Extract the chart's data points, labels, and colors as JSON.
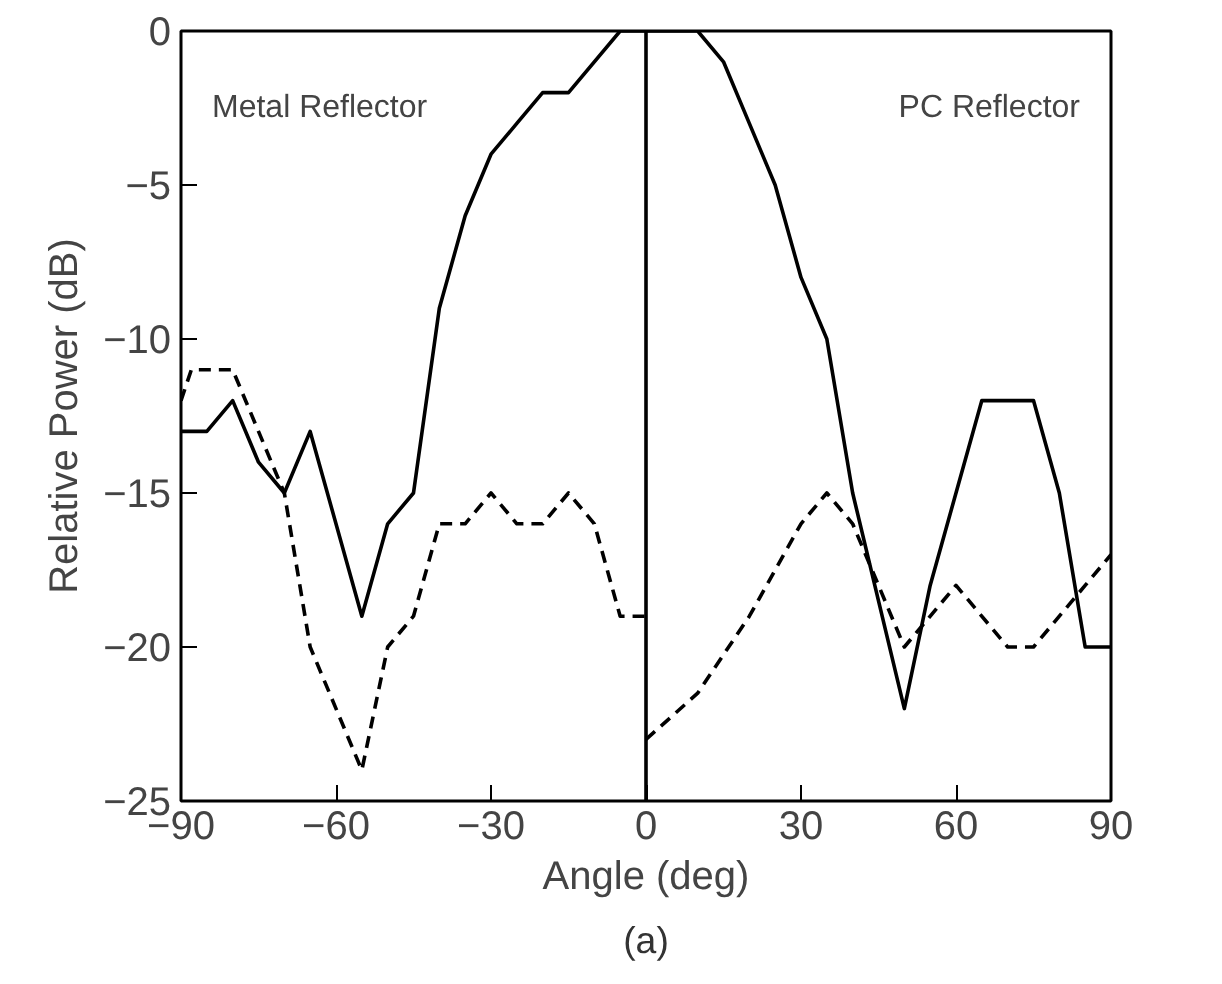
{
  "chart_data": {
    "type": "line",
    "xlabel": "Angle (deg)",
    "ylabel": "Relative Power (dB)",
    "xlim": [
      -90,
      90
    ],
    "xticks": [
      -90,
      -60,
      -30,
      0,
      30,
      60,
      90
    ],
    "ylim": [
      -25,
      0
    ],
    "yticks": [
      -25,
      -20,
      -15,
      -10,
      -5,
      0
    ],
    "grid": false,
    "marker": "none",
    "series": [
      {
        "color": "#000000",
        "line_style": "solid",
        "x": [
          -90,
          -85,
          -80,
          -75,
          -70,
          -65,
          -55,
          -50,
          -45,
          -40,
          -35,
          -30,
          -25,
          -20,
          -15,
          -5,
          0,
          10,
          15,
          20,
          25,
          30,
          35,
          40,
          50,
          55,
          65,
          75,
          80,
          85,
          90
        ],
        "values": [
          -13,
          -13,
          -12,
          -14,
          -15,
          -13,
          -19,
          -16,
          -15,
          -9,
          -6,
          -4,
          -3,
          -2,
          -2,
          0,
          0,
          0,
          -1,
          -3,
          -5,
          -8,
          -10,
          -15,
          -22,
          -18,
          -12,
          -12,
          -15,
          -20,
          -20
        ]
      },
      {
        "color": "#000000",
        "line_style": "dashed",
        "x": [
          -90,
          -88,
          -80,
          -75,
          -70,
          -65,
          -60,
          -55,
          -50,
          -45,
          -40,
          -35,
          -30,
          -25,
          -20,
          -15,
          -10,
          -5,
          0
        ],
        "values": [
          -12,
          -11,
          -11,
          -13,
          -15,
          -20,
          -22,
          -24,
          -20,
          -19,
          -16,
          -16,
          -15,
          -16,
          -16,
          -15,
          -16,
          -19,
          -19
        ]
      },
      {
        "color": "#000000",
        "line_style": "dashed",
        "x": [
          0,
          10,
          20,
          30,
          35,
          40,
          50,
          60,
          70,
          75,
          85,
          90
        ],
        "values": [
          -23,
          -21.5,
          -19,
          -16,
          -15,
          -16,
          -20,
          -18,
          -20,
          -20,
          -18,
          -17
        ]
      }
    ],
    "ref_lines": [
      {
        "axis": "x",
        "value": 0,
        "color": "#000000",
        "line_style": "solid"
      }
    ],
    "annotations": [
      "Metal Reflector",
      "PC Reflector",
      "(a)"
    ]
  }
}
